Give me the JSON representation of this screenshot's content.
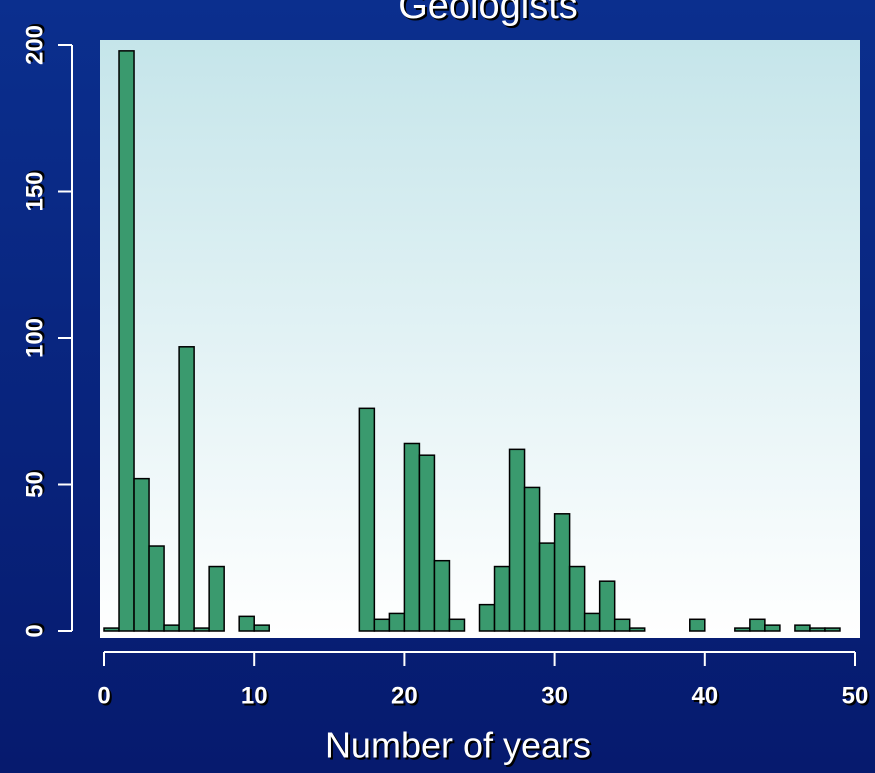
{
  "chart_data": {
    "type": "histogram",
    "title": "Geologists",
    "xlabel": "Number of years",
    "bins": [
      0,
      1,
      2,
      3,
      4,
      5,
      6,
      7,
      8,
      9,
      10,
      11,
      12,
      13,
      14,
      15,
      16,
      17,
      18,
      19,
      20,
      21,
      22,
      23,
      24,
      25,
      26,
      27,
      28,
      29,
      30,
      31,
      32,
      33,
      34,
      35,
      36,
      37,
      38,
      39,
      40,
      41,
      42,
      43,
      44,
      45,
      46,
      47,
      48,
      49,
      50
    ],
    "values": [
      1,
      198,
      52,
      29,
      2,
      97,
      1,
      22,
      0,
      5,
      2,
      0,
      0,
      0,
      0,
      0,
      0,
      76,
      4,
      6,
      64,
      60,
      24,
      4,
      0,
      9,
      22,
      62,
      49,
      30,
      40,
      22,
      6,
      17,
      4,
      1,
      0,
      0,
      0,
      4,
      0,
      0,
      1,
      4,
      2,
      0,
      2,
      1,
      1,
      0
    ],
    "color": "#3a9a6e",
    "xlim": [
      0,
      50
    ],
    "xticks": [
      0,
      10,
      20,
      30,
      40,
      50
    ],
    "ylim": [
      0,
      200
    ],
    "yticks": [
      0,
      50,
      100,
      150,
      200
    ]
  }
}
